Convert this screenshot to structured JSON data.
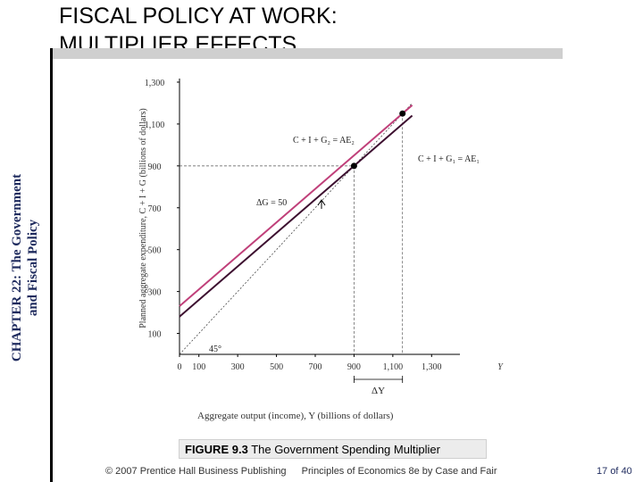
{
  "slide": {
    "title_line1": "FISCAL POLICY AT WORK:",
    "title_line2": "MULTIPLIER EFFECTS",
    "side_line1": "CHAPTER 22: The Government",
    "side_line2": "and Fiscal Policy",
    "figure_label": "FIGURE 9.3",
    "figure_title": "The Government Spending Multiplier",
    "footer_text": "© 2007 Prentice Hall Business Publishing",
    "footer_book": "Principles of Economics 8e by Case and Fair",
    "page_current": "17",
    "page_of": "of",
    "page_total": "40"
  },
  "colors": {
    "ae1_line": "#3d1030",
    "ae2_line": "#c0407a",
    "side_label": "#1f2b5e",
    "title_bar": "#cfcfcf"
  },
  "chart_data": {
    "type": "line",
    "xlabel": "Aggregate output (income), Y (billions of dollars)",
    "ylabel": "Planned aggregate expenditure, C + I + G (billions of dollars)",
    "x_axis_letter": "Y",
    "xlim": [
      0,
      1400
    ],
    "ylim": [
      0,
      1300
    ],
    "x_ticks": [
      0,
      100,
      300,
      500,
      700,
      900,
      1100,
      1300
    ],
    "x_tick_labels": [
      "0",
      "100",
      "300",
      "500",
      "700",
      "900",
      "1,100",
      "1,300"
    ],
    "y_ticks": [
      100,
      300,
      500,
      700,
      900,
      1100,
      1300
    ],
    "y_tick_labels": [
      "100",
      "300",
      "500",
      "700",
      "900",
      "1,100",
      "1,300"
    ],
    "series": [
      {
        "name": "C + I + G₁ = AE₁",
        "x": [
          0,
          1200
        ],
        "y": [
          180,
          1140
        ]
      },
      {
        "name": "C + I + G₂ = AE₂",
        "x": [
          0,
          1200
        ],
        "y": [
          230,
          1190
        ]
      },
      {
        "name": "45°",
        "x": [
          0,
          1200
        ],
        "y": [
          0,
          1200
        ]
      }
    ],
    "points": [
      {
        "x": 900,
        "y": 900
      },
      {
        "x": 1150,
        "y": 1150
      }
    ],
    "annotations": {
      "delta_g": "ΔG = 50",
      "delta_y": "ΔY",
      "angle": "45°"
    },
    "grid": false
  }
}
